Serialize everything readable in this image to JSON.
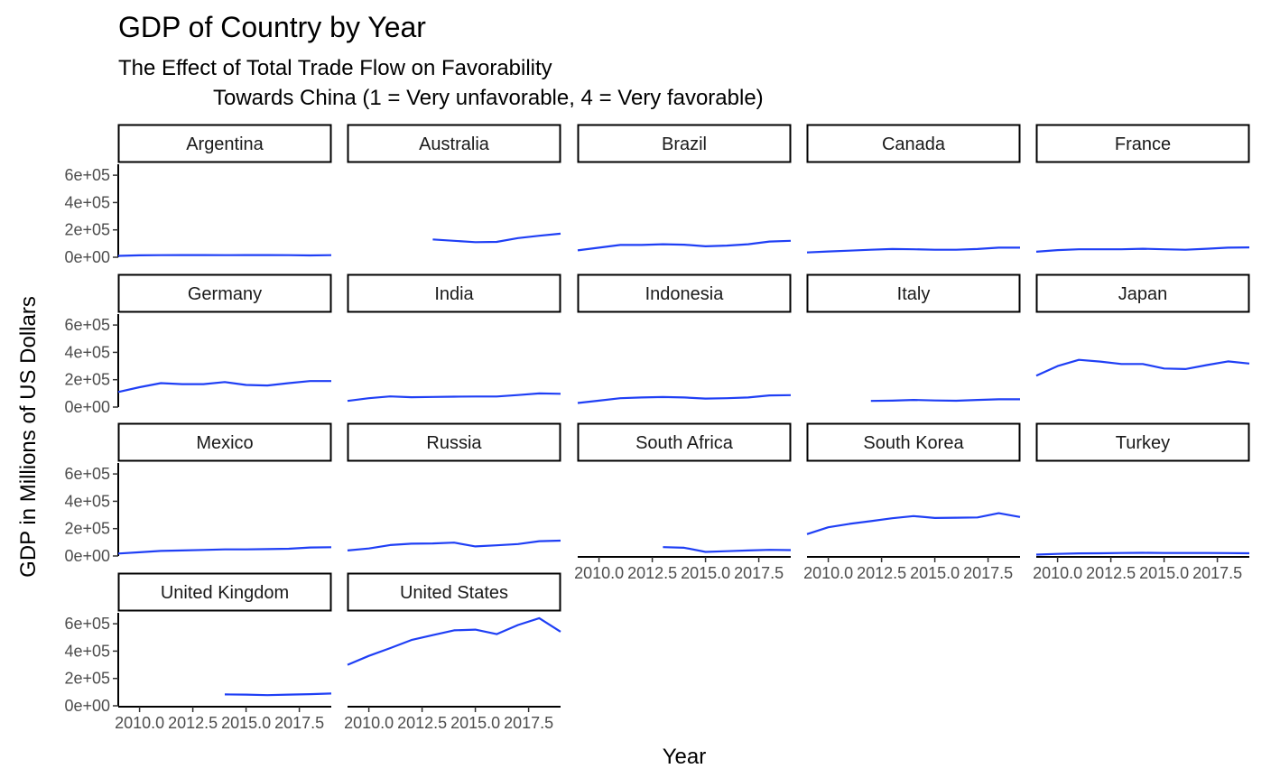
{
  "chart_data": {
    "type": "line",
    "title": "GDP of Country by Year",
    "subtitle_line1": "The Effect of Total Trade Flow on Favorability",
    "subtitle_line2": "Towards China (1 = Very unfavorable, 4 = Very favorable)",
    "xlabel": "Year",
    "ylabel": "GDP in Millions of US Dollars",
    "xlim": [
      2009,
      2019
    ],
    "ylim": [
      0,
      680000
    ],
    "x_ticks": [
      2010,
      2012.5,
      2015,
      2017.5
    ],
    "x_tick_labels": [
      "2010.0",
      "2012.5",
      "2015.0",
      "2017.5"
    ],
    "y_ticks": [
      0,
      200000,
      400000,
      600000
    ],
    "y_tick_labels": [
      "0e+00",
      "2e+05",
      "4e+05",
      "6e+05"
    ],
    "line_color": "#1f3ff5",
    "facet_columns": 5,
    "series": [
      {
        "name": "Argentina",
        "x": [
          2009,
          2010,
          2011,
          2012,
          2013,
          2014,
          2015,
          2016,
          2017,
          2018,
          2019
        ],
        "values": [
          10000,
          14000,
          15000,
          16000,
          16000,
          15000,
          16000,
          16000,
          15000,
          13000,
          15000
        ]
      },
      {
        "name": "Australia",
        "x": [
          2013,
          2014,
          2015,
          2016,
          2017,
          2018,
          2019
        ],
        "values": [
          130000,
          120000,
          110000,
          112000,
          140000,
          157000,
          172000
        ]
      },
      {
        "name": "Brazil",
        "x": [
          2009,
          2010,
          2011,
          2012,
          2013,
          2014,
          2015,
          2016,
          2017,
          2018,
          2019
        ],
        "values": [
          50000,
          70000,
          90000,
          90000,
          95000,
          92000,
          80000,
          85000,
          95000,
          115000,
          120000
        ]
      },
      {
        "name": "Canada",
        "x": [
          2009,
          2010,
          2011,
          2012,
          2013,
          2014,
          2015,
          2016,
          2017,
          2018,
          2019
        ],
        "values": [
          35000,
          42000,
          48000,
          55000,
          60000,
          58000,
          55000,
          55000,
          60000,
          70000,
          70000
        ]
      },
      {
        "name": "France",
        "x": [
          2009,
          2010,
          2011,
          2012,
          2013,
          2014,
          2015,
          2016,
          2017,
          2018,
          2019
        ],
        "values": [
          40000,
          52000,
          58000,
          58000,
          58000,
          62000,
          58000,
          55000,
          62000,
          70000,
          72000
        ]
      },
      {
        "name": "Germany",
        "x": [
          2009,
          2010,
          2011,
          2012,
          2013,
          2014,
          2015,
          2016,
          2017,
          2018,
          2019
        ],
        "values": [
          110000,
          145000,
          175000,
          168000,
          168000,
          183000,
          162000,
          158000,
          175000,
          190000,
          190000
        ]
      },
      {
        "name": "India",
        "x": [
          2009,
          2010,
          2011,
          2012,
          2013,
          2014,
          2015,
          2016,
          2017,
          2018,
          2019
        ],
        "values": [
          45000,
          65000,
          78000,
          72000,
          74000,
          76000,
          77000,
          77000,
          88000,
          100000,
          97000
        ]
      },
      {
        "name": "Indonesia",
        "x": [
          2009,
          2010,
          2011,
          2012,
          2013,
          2014,
          2015,
          2016,
          2017,
          2018,
          2019
        ],
        "values": [
          30000,
          47000,
          65000,
          70000,
          73000,
          70000,
          62000,
          65000,
          70000,
          85000,
          87000
        ]
      },
      {
        "name": "Italy",
        "x": [
          2012,
          2013,
          2014,
          2015,
          2016,
          2017,
          2018,
          2019
        ],
        "values": [
          45000,
          47000,
          52000,
          48000,
          46000,
          52000,
          57000,
          57000
        ]
      },
      {
        "name": "Japan",
        "x": [
          2009,
          2010,
          2011,
          2012,
          2013,
          2014,
          2015,
          2016,
          2017,
          2018,
          2019
        ],
        "values": [
          230000,
          300000,
          345000,
          333000,
          315000,
          315000,
          282000,
          278000,
          307000,
          334000,
          318000
        ]
      },
      {
        "name": "Mexico",
        "x": [
          2009,
          2010,
          2011,
          2012,
          2013,
          2014,
          2015,
          2016,
          2017,
          2018,
          2019
        ],
        "values": [
          18000,
          27000,
          37000,
          40000,
          44000,
          48000,
          48000,
          50000,
          53000,
          62000,
          64000
        ]
      },
      {
        "name": "Russia",
        "x": [
          2009,
          2010,
          2011,
          2012,
          2013,
          2014,
          2015,
          2016,
          2017,
          2018,
          2019
        ],
        "values": [
          40000,
          55000,
          80000,
          90000,
          92000,
          98000,
          70000,
          78000,
          87000,
          108000,
          112000
        ]
      },
      {
        "name": "South Africa",
        "x": [
          2013,
          2014,
          2015,
          2016,
          2017,
          2018,
          2019
        ],
        "values": [
          65000,
          60000,
          30000,
          35000,
          40000,
          45000,
          43000
        ]
      },
      {
        "name": "South Korea",
        "x": [
          2009,
          2010,
          2011,
          2012,
          2013,
          2014,
          2015,
          2016,
          2017,
          2018,
          2019
        ],
        "values": [
          160000,
          210000,
          235000,
          255000,
          276000,
          292000,
          278000,
          280000,
          282000,
          313000,
          285000
        ]
      },
      {
        "name": "Turkey",
        "x": [
          2009,
          2010,
          2011,
          2012,
          2013,
          2014,
          2015,
          2016,
          2017,
          2018,
          2019
        ],
        "values": [
          10000,
          15000,
          19000,
          20000,
          22000,
          23000,
          22000,
          22000,
          22000,
          21000,
          20000
        ]
      },
      {
        "name": "United Kingdom",
        "x": [
          2014,
          2015,
          2016,
          2017,
          2018,
          2019
        ],
        "values": [
          83000,
          82000,
          78000,
          82000,
          85000,
          90000
        ]
      },
      {
        "name": "United States",
        "x": [
          2009,
          2010,
          2011,
          2012,
          2013,
          2014,
          2015,
          2016,
          2017,
          2018,
          2019
        ],
        "values": [
          300000,
          365000,
          422000,
          481000,
          517000,
          552000,
          557000,
          524000,
          591000,
          641000,
          542000
        ]
      }
    ]
  }
}
